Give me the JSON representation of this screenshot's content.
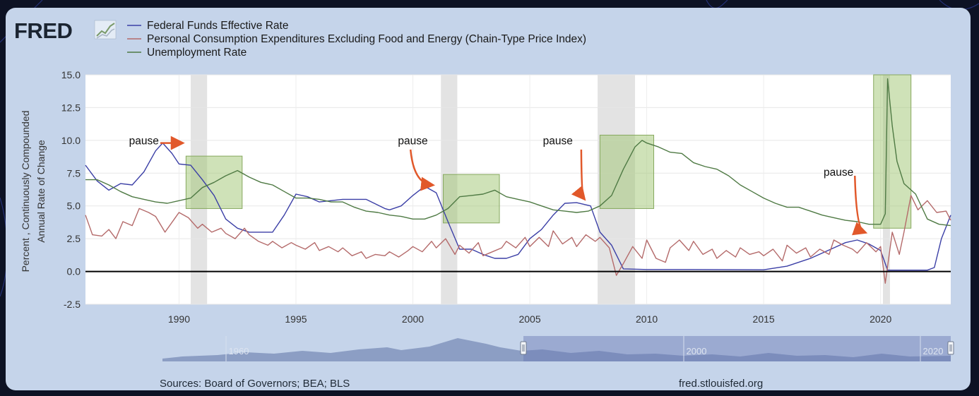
{
  "brand": {
    "logo_text": "FRED"
  },
  "legend": [
    {
      "name": "Federal Funds Effective Rate",
      "color": "#3b3fa6"
    },
    {
      "name": "Personal Consumption Expenditures Excluding Food and Energy (Chain-Type Price Index)",
      "color": "#b46a6a"
    },
    {
      "name": "Unemployment Rate",
      "color": "#4f7a44"
    }
  ],
  "footer": {
    "sources": "Sources: Board of Governors; BEA; BLS",
    "site": "fred.stlouisfed.org"
  },
  "annotations": [
    {
      "label": "pause",
      "text_x": 1988.5,
      "text_y": 9.7,
      "arrow_from": [
        1989.2,
        9.8
      ],
      "arrow_to": [
        1990.1,
        9.8
      ]
    },
    {
      "label": "pause",
      "text_x": 2000,
      "text_y": 9.7,
      "arrow_from": [
        1999.9,
        9.3
      ],
      "arrow_to": [
        2000.8,
        6.6
      ]
    },
    {
      "label": "pause",
      "text_x": 2006.2,
      "text_y": 9.7,
      "arrow_from": [
        2007.2,
        9.3
      ],
      "arrow_to": [
        2007.3,
        5.6
      ]
    },
    {
      "label": "pause",
      "text_x": 2018.2,
      "text_y": 7.3,
      "arrow_from": [
        2018.9,
        7.3
      ],
      "arrow_to": [
        2019.3,
        3.0
      ]
    }
  ],
  "navigator": {
    "ticks": [
      "1960",
      "2000",
      "2020"
    ]
  },
  "chart_data": {
    "type": "line",
    "ylabel": "Percent , Continuously Compounded Annual Rate of Change",
    "xlim": [
      1986,
      2023
    ],
    "ylim": [
      -2.5,
      15
    ],
    "x_ticks": [
      1990,
      1995,
      2000,
      2005,
      2010,
      2015,
      2020
    ],
    "y_ticks": [
      "15.0",
      "12.5",
      "10.0",
      "7.5",
      "5.0",
      "2.5",
      "0.0",
      "-2.5"
    ],
    "grid": true,
    "legend_position": "top-left",
    "recessions": [
      [
        1990.5,
        1991.2
      ],
      [
        2001.2,
        2001.9
      ],
      [
        2007.9,
        2009.5
      ],
      [
        2020.1,
        2020.4
      ]
    ],
    "highlight_boxes": [
      {
        "x": [
          1990.3,
          1992.7
        ],
        "y": [
          4.8,
          8.8
        ]
      },
      {
        "x": [
          2001.3,
          2003.7
        ],
        "y": [
          3.7,
          7.4
        ]
      },
      {
        "x": [
          2008.0,
          2010.3
        ],
        "y": [
          4.8,
          10.4
        ]
      },
      {
        "x": [
          2019.7,
          2021.3
        ],
        "y": [
          3.3,
          15.0
        ]
      }
    ],
    "series": [
      {
        "name": "Federal Funds Effective Rate",
        "color": "#3b3fa6",
        "points": [
          [
            1986,
            8.1
          ],
          [
            1986.5,
            6.9
          ],
          [
            1987,
            6.2
          ],
          [
            1987.5,
            6.7
          ],
          [
            1988,
            6.6
          ],
          [
            1988.5,
            7.6
          ],
          [
            1989,
            9.2
          ],
          [
            1989.3,
            9.8
          ],
          [
            1989.7,
            9.0
          ],
          [
            1990,
            8.2
          ],
          [
            1990.5,
            8.1
          ],
          [
            1991,
            7.0
          ],
          [
            1991.5,
            5.8
          ],
          [
            1992,
            4.0
          ],
          [
            1992.5,
            3.3
          ],
          [
            1993,
            3.0
          ],
          [
            1994,
            3.0
          ],
          [
            1994.5,
            4.3
          ],
          [
            1995,
            5.9
          ],
          [
            1995.5,
            5.7
          ],
          [
            1996,
            5.3
          ],
          [
            1997,
            5.5
          ],
          [
            1998,
            5.5
          ],
          [
            1998.8,
            4.8
          ],
          [
            1999,
            4.7
          ],
          [
            1999.5,
            5.0
          ],
          [
            2000,
            5.8
          ],
          [
            2000.5,
            6.5
          ],
          [
            2001,
            6.0
          ],
          [
            2001.5,
            3.8
          ],
          [
            2002,
            1.7
          ],
          [
            2002.5,
            1.7
          ],
          [
            2003,
            1.3
          ],
          [
            2003.5,
            1.0
          ],
          [
            2004,
            1.0
          ],
          [
            2004.5,
            1.3
          ],
          [
            2005,
            2.5
          ],
          [
            2005.5,
            3.2
          ],
          [
            2006,
            4.3
          ],
          [
            2006.5,
            5.2
          ],
          [
            2007,
            5.25
          ],
          [
            2007.6,
            5.0
          ],
          [
            2008,
            3.0
          ],
          [
            2008.5,
            2.0
          ],
          [
            2009,
            0.2
          ],
          [
            2010,
            0.15
          ],
          [
            2012,
            0.15
          ],
          [
            2015,
            0.13
          ],
          [
            2016,
            0.4
          ],
          [
            2017,
            1.0
          ],
          [
            2018,
            1.8
          ],
          [
            2018.5,
            2.2
          ],
          [
            2019,
            2.4
          ],
          [
            2019.5,
            2.1
          ],
          [
            2020,
            1.6
          ],
          [
            2020.3,
            0.1
          ],
          [
            2022,
            0.1
          ],
          [
            2022.3,
            0.3
          ],
          [
            2022.6,
            2.5
          ],
          [
            2023,
            4.3
          ]
        ]
      },
      {
        "name": "Personal Consumption Expenditures Excluding Food and Energy (Chain-Type Price Index)",
        "color": "#b46a6a",
        "points": [
          [
            1986,
            4.3
          ],
          [
            1986.3,
            2.8
          ],
          [
            1986.7,
            2.7
          ],
          [
            1987,
            3.2
          ],
          [
            1987.3,
            2.5
          ],
          [
            1987.6,
            3.8
          ],
          [
            1988,
            3.5
          ],
          [
            1988.3,
            4.8
          ],
          [
            1988.7,
            4.5
          ],
          [
            1989,
            4.2
          ],
          [
            1989.4,
            3.0
          ],
          [
            1989.8,
            4.0
          ],
          [
            1990,
            4.5
          ],
          [
            1990.4,
            4.1
          ],
          [
            1990.8,
            3.3
          ],
          [
            1991,
            3.6
          ],
          [
            1991.4,
            3.0
          ],
          [
            1991.8,
            3.3
          ],
          [
            1992,
            2.9
          ],
          [
            1992.4,
            2.5
          ],
          [
            1992.8,
            3.3
          ],
          [
            1993,
            2.8
          ],
          [
            1993.4,
            2.3
          ],
          [
            1993.8,
            2.0
          ],
          [
            1994,
            2.3
          ],
          [
            1994.4,
            1.8
          ],
          [
            1994.8,
            2.2
          ],
          [
            1995,
            2.0
          ],
          [
            1995.4,
            1.7
          ],
          [
            1995.8,
            2.2
          ],
          [
            1996,
            1.6
          ],
          [
            1996.4,
            1.9
          ],
          [
            1996.8,
            1.5
          ],
          [
            1997,
            1.8
          ],
          [
            1997.4,
            1.2
          ],
          [
            1997.8,
            1.5
          ],
          [
            1998,
            1.0
          ],
          [
            1998.4,
            1.3
          ],
          [
            1998.8,
            1.2
          ],
          [
            1999,
            1.5
          ],
          [
            1999.4,
            1.1
          ],
          [
            1999.8,
            1.6
          ],
          [
            2000,
            1.9
          ],
          [
            2000.4,
            1.5
          ],
          [
            2000.8,
            2.3
          ],
          [
            2001,
            1.8
          ],
          [
            2001.4,
            2.5
          ],
          [
            2001.8,
            1.3
          ],
          [
            2002,
            2.0
          ],
          [
            2002.4,
            1.4
          ],
          [
            2002.8,
            2.2
          ],
          [
            2003,
            1.2
          ],
          [
            2003.4,
            1.5
          ],
          [
            2003.8,
            1.8
          ],
          [
            2004,
            2.3
          ],
          [
            2004.4,
            1.8
          ],
          [
            2004.8,
            2.6
          ],
          [
            2005,
            1.9
          ],
          [
            2005.4,
            2.6
          ],
          [
            2005.8,
            1.9
          ],
          [
            2006,
            3.1
          ],
          [
            2006.4,
            2.1
          ],
          [
            2006.8,
            2.6
          ],
          [
            2007,
            1.9
          ],
          [
            2007.4,
            2.8
          ],
          [
            2007.8,
            2.3
          ],
          [
            2008,
            2.6
          ],
          [
            2008.4,
            1.8
          ],
          [
            2008.7,
            -0.3
          ],
          [
            2009,
            0.6
          ],
          [
            2009.4,
            1.9
          ],
          [
            2009.8,
            1.0
          ],
          [
            2010,
            2.4
          ],
          [
            2010.4,
            1.0
          ],
          [
            2010.8,
            0.7
          ],
          [
            2011,
            1.8
          ],
          [
            2011.4,
            2.4
          ],
          [
            2011.8,
            1.6
          ],
          [
            2012,
            2.3
          ],
          [
            2012.4,
            1.3
          ],
          [
            2012.8,
            1.7
          ],
          [
            2013,
            1.0
          ],
          [
            2013.4,
            1.6
          ],
          [
            2013.8,
            1.1
          ],
          [
            2014,
            1.8
          ],
          [
            2014.4,
            1.3
          ],
          [
            2014.8,
            1.5
          ],
          [
            2015,
            1.2
          ],
          [
            2015.4,
            1.7
          ],
          [
            2015.8,
            0.8
          ],
          [
            2016,
            2.0
          ],
          [
            2016.4,
            1.4
          ],
          [
            2016.8,
            1.8
          ],
          [
            2017,
            1.1
          ],
          [
            2017.4,
            1.7
          ],
          [
            2017.8,
            1.3
          ],
          [
            2018,
            2.4
          ],
          [
            2018.4,
            2.0
          ],
          [
            2018.8,
            1.7
          ],
          [
            2019,
            1.4
          ],
          [
            2019.4,
            2.2
          ],
          [
            2019.8,
            1.5
          ],
          [
            2020,
            1.9
          ],
          [
            2020.2,
            -0.9
          ],
          [
            2020.5,
            3.0
          ],
          [
            2020.8,
            1.3
          ],
          [
            2021,
            3.0
          ],
          [
            2021.3,
            5.8
          ],
          [
            2021.6,
            4.7
          ],
          [
            2022,
            5.4
          ],
          [
            2022.4,
            4.5
          ],
          [
            2022.8,
            4.6
          ],
          [
            2023,
            3.9
          ]
        ]
      },
      {
        "name": "Unemployment Rate",
        "color": "#4f7a44",
        "points": [
          [
            1986,
            7.0
          ],
          [
            1986.5,
            7.0
          ],
          [
            1987,
            6.6
          ],
          [
            1987.5,
            6.1
          ],
          [
            1988,
            5.7
          ],
          [
            1988.5,
            5.5
          ],
          [
            1989,
            5.3
          ],
          [
            1989.5,
            5.2
          ],
          [
            1990,
            5.4
          ],
          [
            1990.5,
            5.6
          ],
          [
            1991,
            6.4
          ],
          [
            1991.5,
            6.8
          ],
          [
            1992,
            7.3
          ],
          [
            1992.5,
            7.7
          ],
          [
            1993,
            7.2
          ],
          [
            1993.5,
            6.8
          ],
          [
            1994,
            6.6
          ],
          [
            1994.5,
            6.1
          ],
          [
            1995,
            5.6
          ],
          [
            1995.5,
            5.6
          ],
          [
            1996,
            5.5
          ],
          [
            1996.5,
            5.3
          ],
          [
            1997,
            5.3
          ],
          [
            1997.5,
            4.9
          ],
          [
            1998,
            4.6
          ],
          [
            1998.5,
            4.5
          ],
          [
            1999,
            4.3
          ],
          [
            1999.5,
            4.2
          ],
          [
            2000,
            4.0
          ],
          [
            2000.5,
            4.0
          ],
          [
            2001,
            4.3
          ],
          [
            2001.5,
            4.8
          ],
          [
            2002,
            5.7
          ],
          [
            2002.5,
            5.8
          ],
          [
            2003,
            5.9
          ],
          [
            2003.5,
            6.2
          ],
          [
            2004,
            5.7
          ],
          [
            2004.5,
            5.5
          ],
          [
            2005,
            5.3
          ],
          [
            2005.5,
            5.0
          ],
          [
            2006,
            4.7
          ],
          [
            2006.5,
            4.6
          ],
          [
            2007,
            4.5
          ],
          [
            2007.5,
            4.6
          ],
          [
            2008,
            5.0
          ],
          [
            2008.5,
            5.8
          ],
          [
            2009,
            7.8
          ],
          [
            2009.5,
            9.5
          ],
          [
            2009.8,
            10.0
          ],
          [
            2010,
            9.8
          ],
          [
            2010.5,
            9.5
          ],
          [
            2011,
            9.1
          ],
          [
            2011.5,
            9.0
          ],
          [
            2012,
            8.3
          ],
          [
            2012.5,
            8.0
          ],
          [
            2013,
            7.8
          ],
          [
            2013.5,
            7.3
          ],
          [
            2014,
            6.6
          ],
          [
            2014.5,
            6.1
          ],
          [
            2015,
            5.6
          ],
          [
            2015.5,
            5.2
          ],
          [
            2016,
            4.9
          ],
          [
            2016.5,
            4.9
          ],
          [
            2017,
            4.6
          ],
          [
            2017.5,
            4.3
          ],
          [
            2018,
            4.1
          ],
          [
            2018.5,
            3.9
          ],
          [
            2019,
            3.8
          ],
          [
            2019.5,
            3.6
          ],
          [
            2020,
            3.6
          ],
          [
            2020.2,
            4.4
          ],
          [
            2020.3,
            14.7
          ],
          [
            2020.5,
            11.1
          ],
          [
            2020.7,
            8.4
          ],
          [
            2021,
            6.7
          ],
          [
            2021.5,
            5.9
          ],
          [
            2022,
            4.0
          ],
          [
            2022.5,
            3.6
          ],
          [
            2023,
            3.5
          ]
        ]
      }
    ]
  }
}
